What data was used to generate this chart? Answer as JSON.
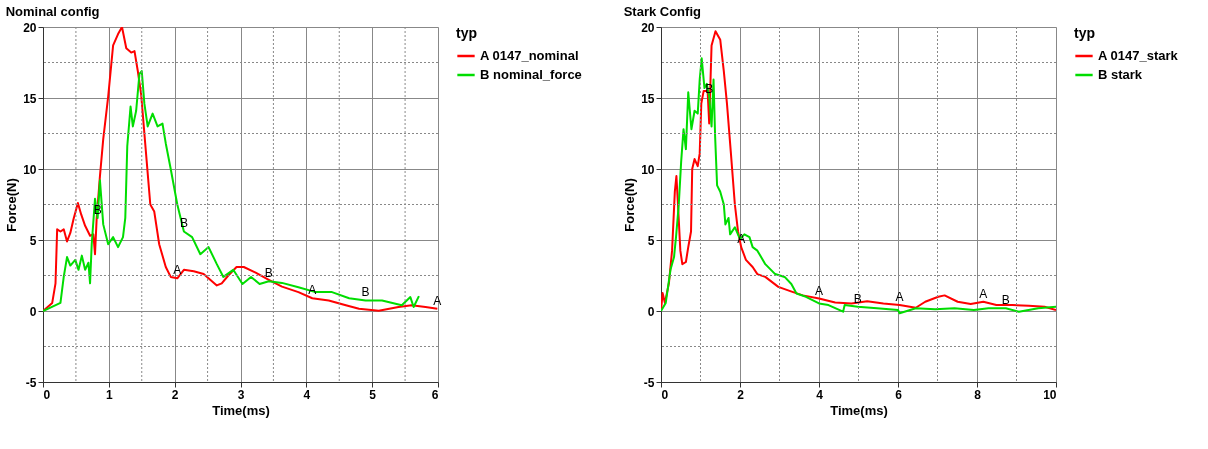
{
  "chart_data": [
    {
      "type": "line",
      "title": "Nominal config",
      "xlabel": "Time(ms)",
      "ylabel": "Force(N)",
      "legend_title": "typ",
      "legend": "right",
      "grid": true,
      "line_style": "solid",
      "marker": "none",
      "xlim": [
        0,
        6
      ],
      "ylim": [
        -5,
        20
      ],
      "xticks": [
        0,
        {
          "value": 0.5,
          "label": null
        },
        1,
        {
          "value": 1.5,
          "label": null
        },
        2,
        {
          "value": 2.5,
          "label": null
        },
        3,
        {
          "value": 3.5,
          "label": null
        },
        4,
        {
          "value": 4.5,
          "label": null
        },
        5,
        {
          "value": 5.5,
          "label": null
        },
        6
      ],
      "yticks": [
        -5,
        {
          "value": -2.5,
          "label": null
        },
        0,
        {
          "value": 2.5,
          "label": null
        },
        5,
        {
          "value": 7.5,
          "label": null
        },
        10,
        {
          "value": 12.5,
          "label": null
        },
        15,
        {
          "value": 17.5,
          "label": null
        },
        20
      ],
      "series": [
        {
          "name": "A 0147_nominal",
          "color": "#ff0000",
          "x": [
            0,
            0.14,
            0.19,
            0.215,
            0.265,
            0.315,
            0.365,
            0.415,
            0.465,
            0.53,
            0.58,
            0.64,
            0.715,
            0.765,
            0.79,
            0.815,
            0.865,
            0.915,
            0.99,
            1.065,
            1.14,
            1.2,
            1.265,
            1.34,
            1.39,
            1.44,
            1.49,
            1.565,
            1.63,
            1.69,
            1.765,
            1.865,
            1.94,
            2.04,
            2.14,
            2.29,
            2.44,
            2.54,
            2.64,
            2.715,
            2.815,
            2.94,
            3.05,
            3.23,
            3.43,
            3.63,
            3.88,
            4.09,
            4.34,
            4.6,
            4.8,
            5.1,
            5.4,
            5.6,
            5.81,
            5.99
          ],
          "values": [
            0,
            0.57,
            1.95,
            5.75,
            5.6,
            5.75,
            4.9,
            5.5,
            6.5,
            7.6,
            6.8,
            6.0,
            5.3,
            5.4,
            4.0,
            6.5,
            9.5,
            12.1,
            15.1,
            18.7,
            19.5,
            20.0,
            18.5,
            18.2,
            18.3,
            16.9,
            15.3,
            11.1,
            7.5,
            7.0,
            4.7,
            3.1,
            2.4,
            2.3,
            2.9,
            2.8,
            2.6,
            2.2,
            1.8,
            1.95,
            2.5,
            3.1,
            3.1,
            2.7,
            2.2,
            1.72,
            1.33,
            0.9,
            0.74,
            0.4,
            0.16,
            0.02,
            0.28,
            0.4,
            0.28,
            0.16
          ]
        },
        {
          "name": "B nominal_force",
          "color": "#00dd00",
          "x": [
            0,
            0.265,
            0.315,
            0.365,
            0.415,
            0.49,
            0.54,
            0.59,
            0.64,
            0.69,
            0.715,
            0.74,
            0.79,
            0.83,
            0.865,
            0.915,
            0.99,
            1.065,
            1.14,
            1.215,
            1.25,
            1.28,
            1.33,
            1.365,
            1.415,
            1.465,
            1.5,
            1.54,
            1.59,
            1.665,
            1.74,
            1.815,
            1.865,
            1.94,
            2.04,
            2.14,
            2.265,
            2.39,
            2.515,
            2.64,
            2.74,
            2.89,
            3.03,
            3.16,
            3.29,
            3.43,
            3.63,
            3.88,
            4.14,
            4.39,
            4.65,
            4.9,
            5.15,
            5.45,
            5.58,
            5.63,
            5.71
          ],
          "values": [
            0,
            0.57,
            2.4,
            3.8,
            3.2,
            3.6,
            2.9,
            3.9,
            2.9,
            3.4,
            1.95,
            4.7,
            7.9,
            6.55,
            9.2,
            6.1,
            4.7,
            5.2,
            4.5,
            5.2,
            6.55,
            11.6,
            14.4,
            13.0,
            14.1,
            16.7,
            16.9,
            14.6,
            13.0,
            13.9,
            13.0,
            13.2,
            11.8,
            10.0,
            7.5,
            5.6,
            5.2,
            4.0,
            4.5,
            3.3,
            2.4,
            2.9,
            1.9,
            2.4,
            1.9,
            2.1,
            1.98,
            1.67,
            1.33,
            1.33,
            0.9,
            0.74,
            0.74,
            0.4,
            0.98,
            0.28,
            1.05
          ]
        }
      ],
      "annotations": [
        {
          "text": "B",
          "x": 0.83,
          "y": 6.55
        },
        {
          "text": "A",
          "x": 2.04,
          "y": 2.3
        },
        {
          "text": "B",
          "x": 2.14,
          "y": 5.6
        },
        {
          "text": "B",
          "x": 3.43,
          "y": 2.1
        },
        {
          "text": "A",
          "x": 4.09,
          "y": 0.9
        },
        {
          "text": "B",
          "x": 4.9,
          "y": 0.74
        },
        {
          "text": "A",
          "x": 5.99,
          "y": 0.16
        }
      ]
    },
    {
      "type": "line",
      "title": "Stark Config",
      "xlabel": "Time(ms)",
      "ylabel": "Force(N)",
      "legend_title": "typ",
      "legend": "right",
      "grid": true,
      "line_style": "solid",
      "marker": "none",
      "xlim": [
        0,
        10
      ],
      "ylim": [
        -5,
        20
      ],
      "xticks": [
        0,
        {
          "value": 1,
          "label": null
        },
        2,
        {
          "value": 3,
          "label": null
        },
        4,
        {
          "value": 5,
          "label": null
        },
        6,
        {
          "value": 7,
          "label": null
        },
        8,
        {
          "value": 9,
          "label": null
        },
        10
      ],
      "yticks": [
        -5,
        {
          "value": -2.5,
          "label": null
        },
        0,
        {
          "value": 2.5,
          "label": null
        },
        5,
        {
          "value": 7.5,
          "label": null
        },
        10,
        {
          "value": 12.5,
          "label": null
        },
        15,
        {
          "value": 17.5,
          "label": null
        },
        20
      ],
      "series": [
        {
          "name": "A 0147_stark",
          "color": "#ff0000",
          "x": [
            0,
            0.04,
            0.1,
            0.2,
            0.28,
            0.35,
            0.39,
            0.43,
            0.49,
            0.54,
            0.63,
            0.69,
            0.76,
            0.79,
            0.85,
            0.93,
            0.98,
            1.02,
            1.08,
            1.18,
            1.22,
            1.28,
            1.38,
            1.5,
            1.59,
            1.67,
            1.77,
            1.87,
            1.95,
            2.03,
            2.15,
            2.32,
            2.44,
            2.64,
            2.97,
            3.29,
            3.59,
            4.0,
            4.41,
            4.82,
            5.22,
            5.63,
            6.04,
            6.45,
            6.69,
            7.02,
            7.18,
            7.51,
            7.84,
            8.16,
            8.49,
            8.9,
            9.31,
            9.71,
            10.0
          ],
          "values": [
            0,
            1.26,
            0.57,
            1.95,
            4.25,
            8.4,
            9.5,
            7.5,
            4.25,
            3.3,
            3.45,
            4.5,
            5.6,
            10.0,
            10.7,
            10.2,
            11.1,
            14.6,
            15.5,
            15.5,
            13.2,
            18.7,
            19.7,
            19.1,
            16.9,
            14.6,
            11.1,
            7.5,
            5.6,
            4.5,
            3.6,
            3.1,
            2.6,
            2.4,
            1.7,
            1.38,
            1.1,
            0.88,
            0.6,
            0.53,
            0.69,
            0.53,
            0.42,
            0.23,
            0.65,
            1.0,
            1.1,
            0.65,
            0.5,
            0.65,
            0.42,
            0.42,
            0.37,
            0.3,
            0.07
          ]
        },
        {
          "name": "B stark",
          "color": "#00dd00",
          "x": [
            0,
            0.12,
            0.24,
            0.33,
            0.38,
            0.45,
            0.51,
            0.57,
            0.63,
            0.69,
            0.77,
            0.85,
            0.93,
            0.98,
            1.03,
            1.1,
            1.16,
            1.22,
            1.28,
            1.33,
            1.37,
            1.42,
            1.5,
            1.59,
            1.63,
            1.71,
            1.75,
            1.87,
            2.0,
            2.11,
            2.24,
            2.32,
            2.44,
            2.64,
            2.89,
            3.13,
            3.3,
            3.43,
            3.67,
            4.0,
            4.24,
            4.61,
            4.65,
            4.98,
            5.47,
            6.0,
            6.04,
            6.45,
            6.94,
            7.43,
            7.92,
            8.29,
            8.73,
            9.06,
            9.55,
            10.0
          ],
          "values": [
            0,
            0.57,
            2.9,
            3.8,
            5.2,
            7.5,
            10.5,
            12.8,
            11.4,
            15.4,
            12.8,
            14.1,
            13.9,
            16.3,
            17.8,
            15.7,
            16.0,
            15.1,
            13.0,
            16.3,
            12.3,
            8.85,
            8.4,
            7.5,
            6.1,
            6.55,
            5.4,
            5.9,
            5.06,
            5.4,
            5.2,
            4.5,
            4.25,
            3.3,
            2.6,
            2.4,
            1.9,
            1.23,
            1.0,
            0.53,
            0.42,
            -0.05,
            0.42,
            0.3,
            0.19,
            0.07,
            -0.16,
            0.19,
            0.12,
            0.19,
            0.07,
            0.19,
            0.19,
            -0.05,
            0.19,
            0.3
          ]
        }
      ],
      "annotations": [
        {
          "text": "B",
          "x": 1.22,
          "y": 15.1
        },
        {
          "text": "A",
          "x": 2.03,
          "y": 4.5
        },
        {
          "text": "A",
          "x": 4.0,
          "y": 0.88
        },
        {
          "text": "B",
          "x": 4.98,
          "y": 0.3
        },
        {
          "text": "A",
          "x": 6.04,
          "y": 0.42
        },
        {
          "text": "A",
          "x": 8.16,
          "y": 0.65
        },
        {
          "text": "B",
          "x": 8.73,
          "y": 0.19
        }
      ]
    }
  ]
}
